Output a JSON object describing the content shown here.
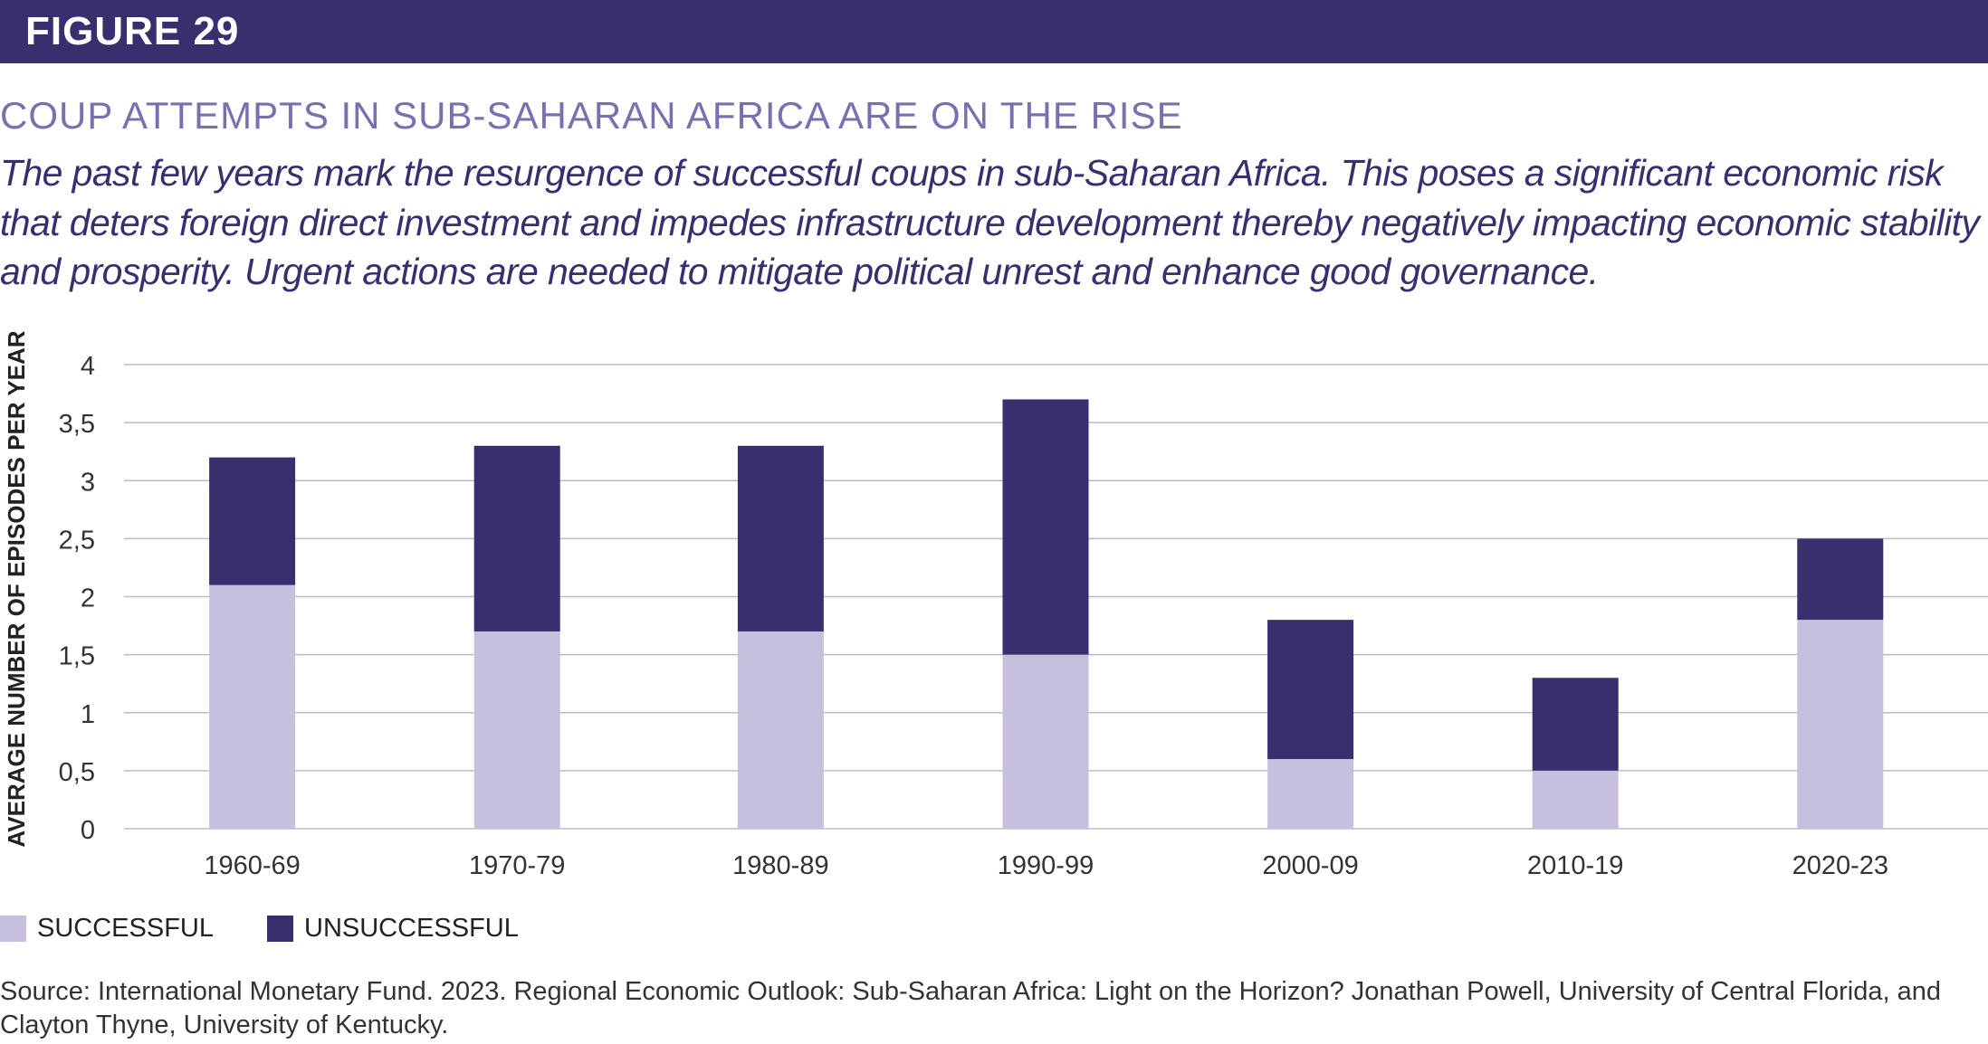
{
  "header": {
    "figure_label": "FIGURE 29"
  },
  "title": "COUP ATTEMPTS IN SUB-SAHARAN AFRICA ARE ON THE RISE",
  "subtitle": "The past few years mark the resurgence of successful coups in sub-Saharan Africa. This poses a significant economic risk that deters foreign direct investment and impedes infrastructure development thereby negatively impacting economic stability and prosperity. Urgent actions are needed to mitigate political unrest and enhance good governance.",
  "chart_data": {
    "type": "bar",
    "stacked": true,
    "categories": [
      "1960-69",
      "1970-79",
      "1980-89",
      "1990-99",
      "2000-09",
      "2010-19",
      "2020-23"
    ],
    "series": [
      {
        "name": "SUCCESSFUL",
        "color": "#c8bfdf",
        "values": [
          2.1,
          1.7,
          1.7,
          1.5,
          0.6,
          0.5,
          1.8
        ]
      },
      {
        "name": "UNSUCCESSFUL",
        "color": "#3b2e6e",
        "values": [
          1.1,
          1.6,
          1.6,
          2.2,
          1.2,
          0.8,
          0.7
        ]
      }
    ],
    "ylabel": "AVERAGE NUMBER OF EPISODES PER YEAR",
    "xlabel": "",
    "ylim": [
      0,
      4
    ],
    "yticks": [
      "0",
      "0,5",
      "1",
      "1,5",
      "2",
      "2,5",
      "3",
      "3,5",
      "4"
    ],
    "grid": true,
    "legend": "bottom-left"
  },
  "source": "Source: International Monetary Fund. 2023. Regional Economic Outlook: Sub-Saharan Africa: Light on the Horizon? Jonathan Powell, University of Central Florida, and Clayton Thyne, University of Kentucky."
}
